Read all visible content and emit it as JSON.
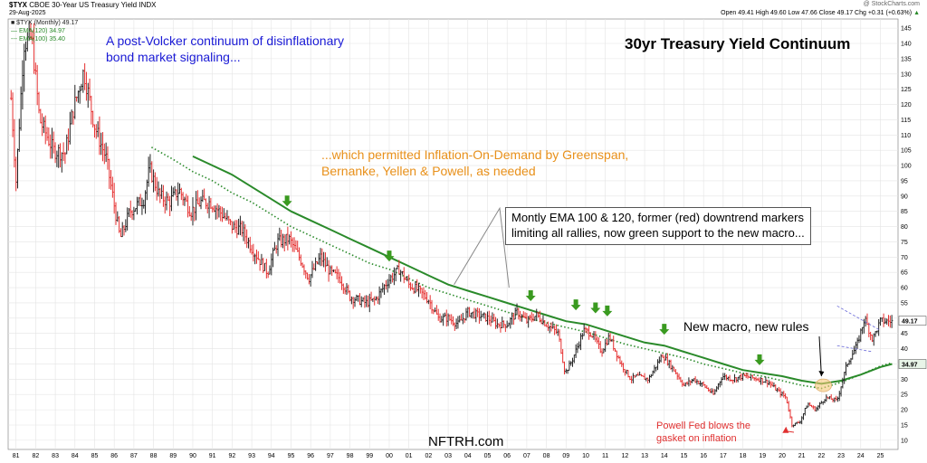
{
  "header": {
    "symbol": "$TYX",
    "name": "CBOE 30-Year US Treasury Yield INDX",
    "date": "29-Aug-2025",
    "watermark": "@ StockCharts.com",
    "ohlc": "Open 49.41  High 49.60  Low 47.66  Close 49.17  Chg +0.31 (+0.63%)",
    "ohlc_arrow": "▲"
  },
  "legend": {
    "price": "■ $TYX (Monthly) 49.17",
    "ema120": "— EMA(120) 34.97",
    "ema100": "--- EMA(100) 35.40"
  },
  "annotations": {
    "title": "30yr Treasury Yield Continuum",
    "volcker": [
      "A post-Volcker continuum of disinflationary",
      "bond market signaling..."
    ],
    "greenspan": [
      "...which permitted Inflation-On-Demand by Greenspan,",
      "Bernanke, Yellen & Powell, as needed"
    ],
    "ema_callout": [
      "Montly EMA 100 & 120, former (red) downtrend markers",
      "limiting all rallies, now green support to the new macro..."
    ],
    "new_macro": "New macro, new rules",
    "powell": [
      "Powell Fed blows the",
      "gasket on inflation"
    ],
    "brand": "NFTRH.com"
  },
  "colors": {
    "up": "#222222",
    "down": "#e53030",
    "ema": "#2a8a2a",
    "blue_text": "#1a1ad6",
    "orange_text": "#e8901a",
    "red_text": "#e03030",
    "arrow_green": "#3a9a20"
  },
  "chart_data": {
    "type": "line",
    "price_type": "ohlc-bars",
    "x_unit": "year",
    "y_axis_side": "right",
    "ylim": [
      7,
      148
    ],
    "y_ticks": [
      10,
      15,
      20,
      25,
      30,
      35,
      40,
      45,
      50,
      55,
      60,
      65,
      70,
      75,
      80,
      85,
      90,
      95,
      100,
      105,
      110,
      115,
      120,
      125,
      130,
      135,
      140,
      145
    ],
    "x_tick_labels": [
      "81",
      "82",
      "83",
      "84",
      "85",
      "86",
      "87",
      "88",
      "89",
      "90",
      "91",
      "92",
      "93",
      "94",
      "95",
      "96",
      "97",
      "98",
      "99",
      "00",
      "01",
      "02",
      "03",
      "04",
      "05",
      "06",
      "07",
      "08",
      "09",
      "10",
      "11",
      "12",
      "13",
      "14",
      "15",
      "16",
      "17",
      "18",
      "19",
      "20",
      "21",
      "22",
      "23",
      "24",
      "25"
    ],
    "x_tick_years": [
      1981,
      1982,
      1983,
      1984,
      1985,
      1986,
      1987,
      1988,
      1989,
      1990,
      1991,
      1992,
      1993,
      1994,
      1995,
      1996,
      1997,
      1998,
      1999,
      2000,
      2001,
      2002,
      2003,
      2004,
      2005,
      2006,
      2007,
      2008,
      2009,
      2010,
      2011,
      2012,
      2013,
      2014,
      2015,
      2016,
      2017,
      2018,
      2019,
      2020,
      2021,
      2022,
      2023,
      2024,
      2025
    ],
    "xlim": [
      1980.6,
      2025.9
    ],
    "series": [
      {
        "name": "$TYX (Monthly)",
        "x": [
          1980.75,
          1981.0,
          1981.4,
          1981.8,
          1982.2,
          1982.9,
          1983.5,
          1983.9,
          1984.45,
          1985.0,
          1985.6,
          1986.0,
          1986.3,
          1986.8,
          1987.5,
          1987.8,
          1988.3,
          1988.8,
          1989.3,
          1989.9,
          1990.4,
          1990.9,
          1991.5,
          1992.0,
          1992.5,
          1993.0,
          1993.8,
          1994.3,
          1994.9,
          1995.5,
          1995.9,
          1996.5,
          1997.0,
          1997.5,
          1998.0,
          1998.8,
          1999.3,
          1999.9,
          2000.5,
          2001.0,
          2001.5,
          2002.0,
          2002.5,
          2003.0,
          2003.5,
          2004.0,
          2004.5,
          2005.0,
          2005.5,
          2006.0,
          2006.5,
          2007.0,
          2007.5,
          2008.0,
          2008.6,
          2008.95,
          2009.3,
          2009.9,
          2010.3,
          2010.8,
          2011.2,
          2011.8,
          2012.3,
          2012.6,
          2013.2,
          2013.9,
          2014.5,
          2015.0,
          2015.5,
          2016.0,
          2016.5,
          2016.95,
          2017.5,
          2018.0,
          2018.85,
          2019.3,
          2019.8,
          2020.2,
          2020.5,
          2020.9,
          2021.3,
          2021.7,
          2022.2,
          2022.8,
          2023.3,
          2023.8,
          2024.2,
          2024.6,
          2025.0,
          2025.6
        ],
        "y": [
          122,
          95,
          140,
          142,
          115,
          105,
          104,
          118,
          131,
          113,
          102,
          87,
          76,
          85,
          89,
          99,
          90,
          88,
          92,
          85,
          88,
          88,
          84,
          80,
          79,
          73,
          65,
          75,
          76,
          69,
          63,
          70,
          65,
          63,
          57,
          55,
          56,
          62,
          66,
          61,
          59,
          56,
          50,
          50,
          48,
          52,
          51,
          50,
          48,
          48,
          52,
          49,
          51,
          48,
          45,
          32,
          36,
          46,
          45,
          39,
          44,
          35,
          30,
          31,
          30,
          38,
          33,
          28,
          30,
          28,
          25,
          31,
          30,
          31,
          30,
          29,
          26,
          24,
          15,
          16,
          22,
          20,
          24,
          23,
          35,
          41,
          50,
          43,
          49,
          49
        ]
      },
      {
        "name": "EMA(120)",
        "x": [
          1990.0,
          1991,
          1992,
          1993,
          1994,
          1995,
          1996,
          1997,
          1998,
          1999,
          2000,
          2001,
          2002,
          2003,
          2004,
          2005,
          2006,
          2007,
          2008,
          2009,
          2010,
          2011,
          2012,
          2013,
          2014,
          2015,
          2016,
          2017,
          2018,
          2019,
          2020,
          2021,
          2022,
          2023,
          2024,
          2025,
          2025.6
        ],
        "y": [
          103,
          100,
          97,
          93,
          89,
          85,
          82,
          79,
          76,
          73,
          70,
          67,
          64,
          61,
          59,
          57,
          55,
          53,
          51,
          49,
          48,
          46,
          44,
          42,
          41,
          39,
          37,
          35,
          33,
          32,
          31,
          29.5,
          28.5,
          29.5,
          31.5,
          34,
          35
        ]
      },
      {
        "name": "EMA(100)",
        "x": [
          1987.9,
          1989,
          1990,
          1991,
          1992,
          1993,
          1994,
          1995,
          1996,
          1997,
          1998,
          1999,
          2000,
          2001,
          2002,
          2003,
          2004,
          2005,
          2006,
          2007,
          2008,
          2009,
          2010,
          2011,
          2012,
          2013,
          2014,
          2015,
          2016,
          2017,
          2018,
          2019,
          2020,
          2021,
          2022,
          2023,
          2024,
          2025,
          2025.6
        ],
        "y": [
          106,
          102,
          98,
          95,
          91,
          88,
          84,
          80,
          77,
          74,
          71,
          68,
          66,
          63,
          60,
          58,
          56,
          54,
          52,
          50,
          48.5,
          47,
          45.5,
          43.5,
          41.5,
          40,
          38.5,
          37,
          35,
          33.5,
          32,
          31,
          29.5,
          28,
          27,
          29,
          31.5,
          34.3,
          35.4
        ]
      }
    ],
    "marker_arrows": [
      {
        "x": 1994.8,
        "y": 86
      },
      {
        "x": 2000.0,
        "y": 68
      },
      {
        "x": 2007.2,
        "y": 55
      },
      {
        "x": 2009.5,
        "y": 52
      },
      {
        "x": 2010.5,
        "y": 51
      },
      {
        "x": 2011.1,
        "y": 50
      },
      {
        "x": 2014.0,
        "y": 44
      },
      {
        "x": 2018.85,
        "y": 34
      }
    ],
    "last_price": "49.17",
    "last_ema": "34.97"
  }
}
